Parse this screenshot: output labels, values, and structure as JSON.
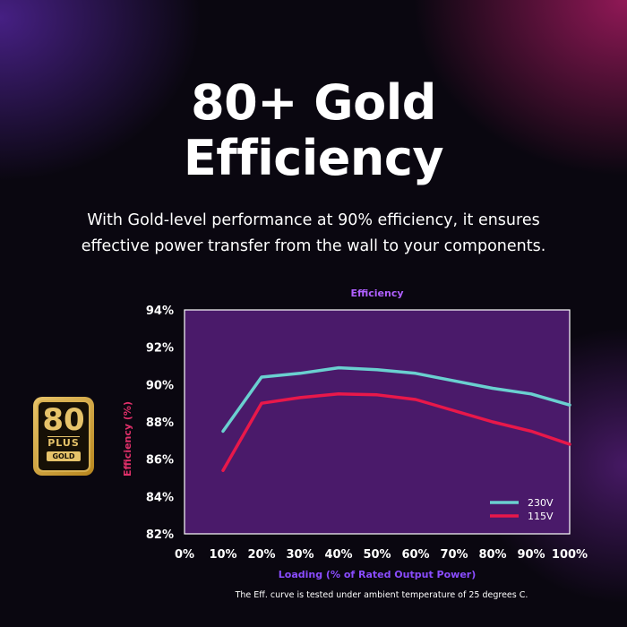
{
  "header": {
    "title_line1": "80+ Gold",
    "title_line2": "Efficiency",
    "subtitle_line1": "With Gold-level performance at 90% efficiency, it ensures",
    "subtitle_line2": "effective power transfer from the wall to your components."
  },
  "badge": {
    "number": "80",
    "plus": "PLUS",
    "tier": "GOLD",
    "color": "#d8b050"
  },
  "footnote": "The Eff. curve is tested under ambient temperature of 25 degrees C.",
  "chart_data": {
    "type": "line",
    "title": "Efficiency",
    "xlabel": "Loading (% of Rated Output Power)",
    "ylabel": "Efficiency (%)",
    "x": [
      10,
      20,
      30,
      40,
      50,
      60,
      70,
      80,
      90,
      100
    ],
    "x_ticks": [
      "0%",
      "10%",
      "20%",
      "30%",
      "40%",
      "50%",
      "60%",
      "70%",
      "80%",
      "90%",
      "100%"
    ],
    "y_ticks": [
      "82%",
      "84%",
      "86%",
      "88%",
      "90%",
      "92%",
      "94%"
    ],
    "xlim": [
      0,
      100
    ],
    "ylim": [
      82,
      94
    ],
    "grid": false,
    "legend": "bottom-right",
    "plot_background": "#4a1a6a",
    "title_color": "#b060ff",
    "xlabel_color": "#8a4cff",
    "ylabel_color": "#e0306a",
    "series": [
      {
        "name": "230V",
        "color": "#6ad0d0",
        "values": [
          87.5,
          90.4,
          90.6,
          90.9,
          90.8,
          90.6,
          90.2,
          89.8,
          89.5,
          88.9
        ]
      },
      {
        "name": "115V",
        "color": "#e8184a",
        "values": [
          85.4,
          89.0,
          89.3,
          89.5,
          89.45,
          89.2,
          88.6,
          88.0,
          87.5,
          86.8
        ]
      }
    ]
  }
}
